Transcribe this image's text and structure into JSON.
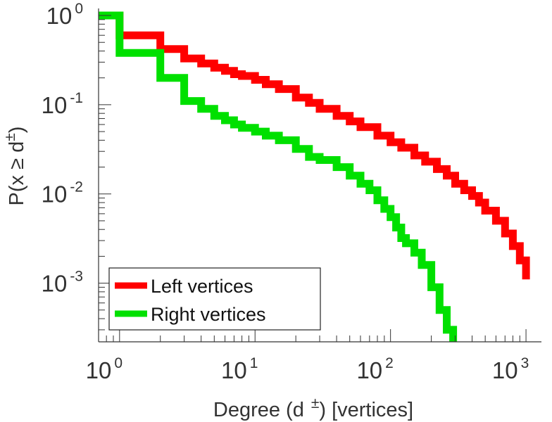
{
  "chart_data": {
    "type": "line",
    "scale": {
      "x": "log",
      "y": "log"
    },
    "xlabel": {
      "main": "Degree (d",
      "sup": "±",
      "unit": ") [vertices]"
    },
    "ylabel": {
      "main": "P(x ≥ d",
      "sup": "±",
      "close": ")"
    },
    "xlim": [
      0.7,
      1300
    ],
    "ylim": [
      0.00022,
      1.2
    ],
    "x_ticks": [
      {
        "value": 1,
        "base": "10",
        "exp": "0"
      },
      {
        "value": 10,
        "base": "10",
        "exp": "1"
      },
      {
        "value": 100,
        "base": "10",
        "exp": "2"
      },
      {
        "value": 1000,
        "base": "10",
        "exp": "3"
      }
    ],
    "y_ticks": [
      {
        "value": 1,
        "base": "10",
        "exp": "0"
      },
      {
        "value": 0.1,
        "base": "10",
        "exp": "-1"
      },
      {
        "value": 0.01,
        "base": "10",
        "exp": "-2"
      },
      {
        "value": 0.001,
        "base": "10",
        "exp": "-3"
      }
    ],
    "series": [
      {
        "name": "Left vertices",
        "color": "#ff0000",
        "x": [
          0.7,
          1,
          2,
          3,
          4,
          5,
          6,
          7,
          8,
          10,
          12,
          15,
          20,
          25,
          30,
          40,
          50,
          60,
          80,
          100,
          120,
          150,
          180,
          220,
          260,
          300,
          350,
          400,
          450,
          500,
          600,
          700,
          800,
          900,
          1000
        ],
        "y": [
          1,
          0.6,
          0.42,
          0.33,
          0.29,
          0.26,
          0.24,
          0.22,
          0.21,
          0.19,
          0.17,
          0.15,
          0.12,
          0.105,
          0.09,
          0.075,
          0.065,
          0.056,
          0.045,
          0.038,
          0.033,
          0.027,
          0.023,
          0.019,
          0.016,
          0.013,
          0.011,
          0.0095,
          0.008,
          0.0065,
          0.005,
          0.0036,
          0.0026,
          0.0018,
          0.0011
        ]
      },
      {
        "name": "Right vertices",
        "color": "#00e000",
        "x": [
          0.7,
          1,
          2,
          3,
          4,
          5,
          6,
          7,
          8,
          10,
          12,
          15,
          20,
          25,
          30,
          40,
          50,
          60,
          70,
          80,
          90,
          100,
          110,
          120,
          130,
          150,
          170,
          200,
          230,
          260,
          290
        ],
        "y": [
          1,
          0.38,
          0.2,
          0.11,
          0.09,
          0.075,
          0.067,
          0.06,
          0.055,
          0.05,
          0.045,
          0.04,
          0.032,
          0.026,
          0.024,
          0.02,
          0.016,
          0.013,
          0.011,
          0.0085,
          0.0068,
          0.0055,
          0.0042,
          0.0032,
          0.0028,
          0.0022,
          0.0016,
          0.0009,
          0.0005,
          0.0003,
          0.00022
        ]
      }
    ],
    "legend": {
      "position": "bottom-left"
    },
    "grid": false
  }
}
